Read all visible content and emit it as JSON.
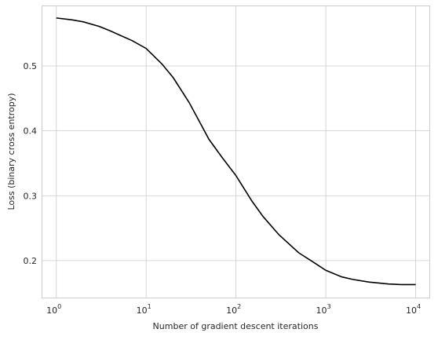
{
  "chart_data": {
    "type": "line",
    "title": "",
    "xlabel": "Number of gradient descent iterations",
    "ylabel": "Loss (binary cross entropy)",
    "xscale": "log",
    "xlim": [
      0.7,
      14200
    ],
    "ylim": [
      0.143,
      0.592
    ],
    "grid": true,
    "legend": "none",
    "line_color": "#000000",
    "grid_color": "#cccccc",
    "xticks": [
      {
        "value": 1,
        "base": "10",
        "exp": "0"
      },
      {
        "value": 10,
        "base": "10",
        "exp": "1"
      },
      {
        "value": 100,
        "base": "10",
        "exp": "2"
      },
      {
        "value": 1000,
        "base": "10",
        "exp": "3"
      },
      {
        "value": 10000,
        "base": "10",
        "exp": "4"
      }
    ],
    "yticks": [
      {
        "value": 0.2,
        "label": "0.2"
      },
      {
        "value": 0.3,
        "label": "0.3"
      },
      {
        "value": 0.4,
        "label": "0.4"
      },
      {
        "value": 0.5,
        "label": "0.5"
      }
    ],
    "series": [
      {
        "x": [
          1,
          1.5,
          2,
          3,
          4,
          5,
          7,
          10,
          15,
          20,
          30,
          40,
          50,
          70,
          100,
          150,
          200,
          300,
          500,
          700,
          1000,
          1500,
          2000,
          3000,
          5000,
          7000,
          10000
        ],
        "y": [
          0.574,
          0.571,
          0.568,
          0.561,
          0.554,
          0.548,
          0.539,
          0.527,
          0.503,
          0.482,
          0.444,
          0.412,
          0.387,
          0.359,
          0.331,
          0.292,
          0.268,
          0.24,
          0.212,
          0.199,
          0.185,
          0.175,
          0.171,
          0.167,
          0.164,
          0.163,
          0.163
        ]
      }
    ]
  }
}
